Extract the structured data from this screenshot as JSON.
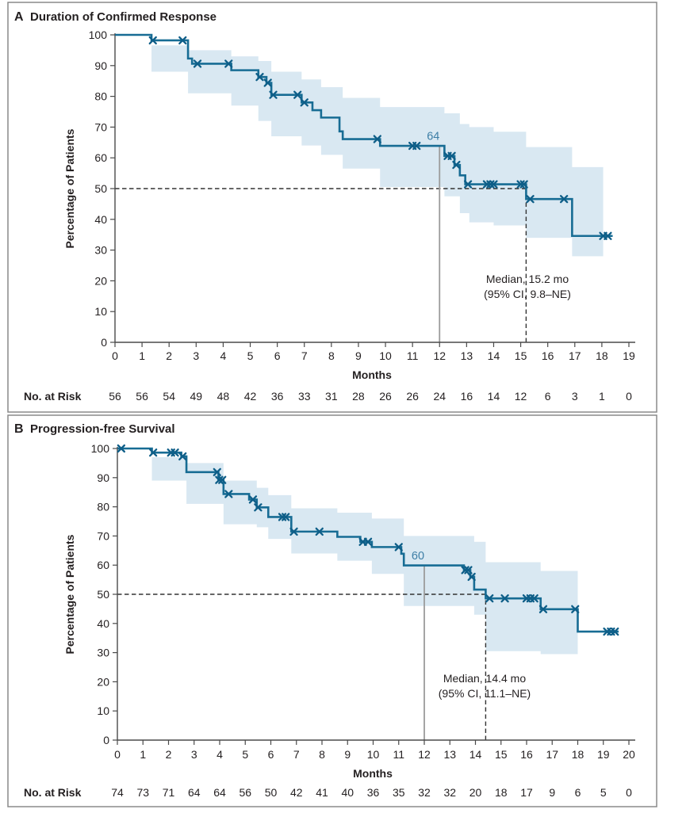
{
  "colors": {
    "curve": "#176c94",
    "censor": "#0e5e88",
    "ci_band": "#d9e8f2",
    "ref_line_gray": "#9b9b9b",
    "dashed_line": "#333333",
    "axis": "#4a4a4a",
    "text": "#231f20",
    "value_label": "#3d7ea6",
    "frame": "#8a8a8a",
    "background": "#ffffff"
  },
  "chart_data": [
    {
      "type": "line",
      "subtype": "kaplan_meier_step",
      "panel_letter": "A",
      "title": "Duration of Confirmed Response",
      "xlabel": "Months",
      "ylabel": "Percentage of Patients",
      "xlim": [
        0,
        19
      ],
      "ylim": [
        0,
        100
      ],
      "x_ticks": [
        0,
        1,
        2,
        3,
        4,
        5,
        6,
        7,
        8,
        9,
        10,
        11,
        12,
        13,
        14,
        15,
        16,
        17,
        18,
        19
      ],
      "y_ticks": [
        0,
        10,
        20,
        30,
        40,
        50,
        60,
        70,
        80,
        90,
        100
      ],
      "grid": false,
      "legend": "none",
      "series": [
        {
          "name": "Duration of confirmed response",
          "points": [
            [
              0,
              100
            ],
            [
              1.35,
              98.2
            ],
            [
              2.7,
              92.3
            ],
            [
              2.85,
              90.6
            ],
            [
              4.3,
              88.5
            ],
            [
              5.3,
              86.3
            ],
            [
              5.6,
              84.4
            ],
            [
              5.78,
              80.5
            ],
            [
              6.9,
              78
            ],
            [
              7.3,
              75.5
            ],
            [
              7.62,
              73.1
            ],
            [
              8.3,
              68.6
            ],
            [
              8.42,
              66.1
            ],
            [
              9.8,
              63.9
            ],
            [
              12.18,
              60.6
            ],
            [
              12.55,
              57.7
            ],
            [
              12.75,
              54.3
            ],
            [
              12.95,
              51.4
            ],
            [
              15.2,
              46.6
            ],
            [
              16.9,
              34.6
            ]
          ],
          "end_x": 18.4
        }
      ],
      "censor_marks": [
        [
          1.4,
          98.2
        ],
        [
          2.5,
          98.2
        ],
        [
          3.05,
          90.6
        ],
        [
          4.2,
          90.6
        ],
        [
          5.35,
          86.3
        ],
        [
          5.65,
          84.4
        ],
        [
          5.85,
          80.5
        ],
        [
          6.75,
          80.5
        ],
        [
          7.0,
          78
        ],
        [
          9.7,
          66.1
        ],
        [
          11.0,
          63.9
        ],
        [
          11.15,
          63.9
        ],
        [
          12.3,
          60.6
        ],
        [
          12.45,
          60.6
        ],
        [
          12.62,
          57.7
        ],
        [
          13.05,
          51.4
        ],
        [
          13.75,
          51.4
        ],
        [
          13.88,
          51.4
        ],
        [
          14.0,
          51.4
        ],
        [
          15.0,
          51.4
        ],
        [
          15.12,
          51.4
        ],
        [
          15.35,
          46.6
        ],
        [
          16.6,
          46.6
        ],
        [
          18.05,
          34.6
        ],
        [
          18.22,
          34.6
        ]
      ],
      "ci_band": {
        "steps": [
          [
            1.35,
            96.6,
            88
          ],
          [
            2.7,
            95,
            81
          ],
          [
            4.3,
            93,
            77
          ],
          [
            5.3,
            91.5,
            72
          ],
          [
            5.78,
            88,
            67
          ],
          [
            6.9,
            85.5,
            64
          ],
          [
            7.62,
            83,
            61
          ],
          [
            8.42,
            79.5,
            56.5
          ],
          [
            9.8,
            76.5,
            50.5
          ],
          [
            12.18,
            74.5,
            47.5
          ],
          [
            12.75,
            71,
            42
          ],
          [
            13.1,
            70,
            39
          ],
          [
            14.0,
            68.5,
            38
          ],
          [
            15.2,
            63.5,
            34
          ],
          [
            16.9,
            57,
            28
          ]
        ],
        "end_x": 18.05
      },
      "reference_50pct_y": 50,
      "timepoint_label": {
        "x": 12,
        "y": 64,
        "text": "64"
      },
      "median": {
        "x": 15.2,
        "text": [
          "Median, 15.2 mo",
          "(95% CI, 9.8–NE)"
        ]
      },
      "no_at_risk": {
        "label": "No. at Risk",
        "values": [
          56,
          56,
          54,
          49,
          48,
          42,
          36,
          33,
          31,
          28,
          26,
          26,
          24,
          16,
          14,
          12,
          6,
          3,
          1,
          0
        ]
      }
    },
    {
      "type": "line",
      "subtype": "kaplan_meier_step",
      "panel_letter": "B",
      "title": "Progression-free Survival",
      "xlabel": "Months",
      "ylabel": "Percentage of Patients",
      "xlim": [
        0,
        20
      ],
      "ylim": [
        0,
        100
      ],
      "x_ticks": [
        0,
        1,
        2,
        3,
        4,
        5,
        6,
        7,
        8,
        9,
        10,
        11,
        12,
        13,
        14,
        15,
        16,
        17,
        18,
        19,
        20
      ],
      "y_ticks": [
        0,
        10,
        20,
        30,
        40,
        50,
        60,
        70,
        80,
        90,
        100
      ],
      "grid": false,
      "legend": "none",
      "series": [
        {
          "name": "Progression-free survival",
          "points": [
            [
              0,
              100
            ],
            [
              1.35,
              98.6
            ],
            [
              2.5,
              97.3
            ],
            [
              2.7,
              91.9
            ],
            [
              3.95,
              89.2
            ],
            [
              4.15,
              84.4
            ],
            [
              5.15,
              82.5
            ],
            [
              5.45,
              79.8
            ],
            [
              5.9,
              76.5
            ],
            [
              6.8,
              71.5
            ],
            [
              8.6,
              69.7
            ],
            [
              9.5,
              68
            ],
            [
              9.95,
              66.2
            ],
            [
              11.1,
              63.9
            ],
            [
              11.2,
              59.9
            ],
            [
              13.55,
              58.3
            ],
            [
              13.8,
              56
            ],
            [
              13.95,
              51.6
            ],
            [
              14.4,
              48.6
            ],
            [
              16.55,
              44.9
            ],
            [
              18.0,
              37.2
            ]
          ],
          "end_x": 19.6
        }
      ],
      "censor_marks": [
        [
          0.15,
          100
        ],
        [
          1.4,
          98.6
        ],
        [
          2.1,
          98.6
        ],
        [
          2.25,
          98.6
        ],
        [
          2.55,
          97.3
        ],
        [
          3.9,
          91.9
        ],
        [
          3.98,
          89.2
        ],
        [
          4.1,
          89.2
        ],
        [
          4.35,
          84.4
        ],
        [
          5.3,
          82.5
        ],
        [
          5.5,
          79.8
        ],
        [
          6.45,
          76.5
        ],
        [
          6.58,
          76.5
        ],
        [
          6.9,
          71.5
        ],
        [
          7.9,
          71.5
        ],
        [
          9.6,
          68
        ],
        [
          9.8,
          68
        ],
        [
          11.0,
          66.2
        ],
        [
          13.6,
          58.3
        ],
        [
          13.72,
          58.3
        ],
        [
          13.85,
          56
        ],
        [
          14.55,
          48.6
        ],
        [
          15.15,
          48.6
        ],
        [
          16.0,
          48.6
        ],
        [
          16.15,
          48.6
        ],
        [
          16.3,
          48.6
        ],
        [
          16.65,
          44.9
        ],
        [
          17.9,
          44.9
        ],
        [
          19.15,
          37.2
        ],
        [
          19.3,
          37.2
        ],
        [
          19.45,
          37.2
        ]
      ],
      "ci_band": {
        "steps": [
          [
            1.35,
            97,
            89
          ],
          [
            2.7,
            95,
            81
          ],
          [
            4.15,
            89,
            74
          ],
          [
            5.45,
            86.5,
            73
          ],
          [
            5.9,
            84,
            69
          ],
          [
            6.8,
            79.5,
            64
          ],
          [
            8.6,
            78,
            61.5
          ],
          [
            9.95,
            76,
            57
          ],
          [
            11.2,
            70,
            46
          ],
          [
            13.95,
            68,
            43
          ],
          [
            14.4,
            61,
            30.5
          ],
          [
            16.55,
            58,
            29.5
          ]
        ],
        "end_x": 18.0
      },
      "reference_50pct_y": 50,
      "timepoint_label": {
        "x": 12,
        "y": 60,
        "text": "60"
      },
      "median": {
        "x": 14.4,
        "text": [
          "Median, 14.4 mo",
          "(95% CI, 11.1–NE)"
        ]
      },
      "no_at_risk": {
        "label": "No. at Risk",
        "values": [
          74,
          73,
          71,
          64,
          64,
          56,
          50,
          42,
          41,
          40,
          36,
          35,
          32,
          32,
          20,
          18,
          17,
          9,
          6,
          5,
          0
        ]
      }
    }
  ]
}
